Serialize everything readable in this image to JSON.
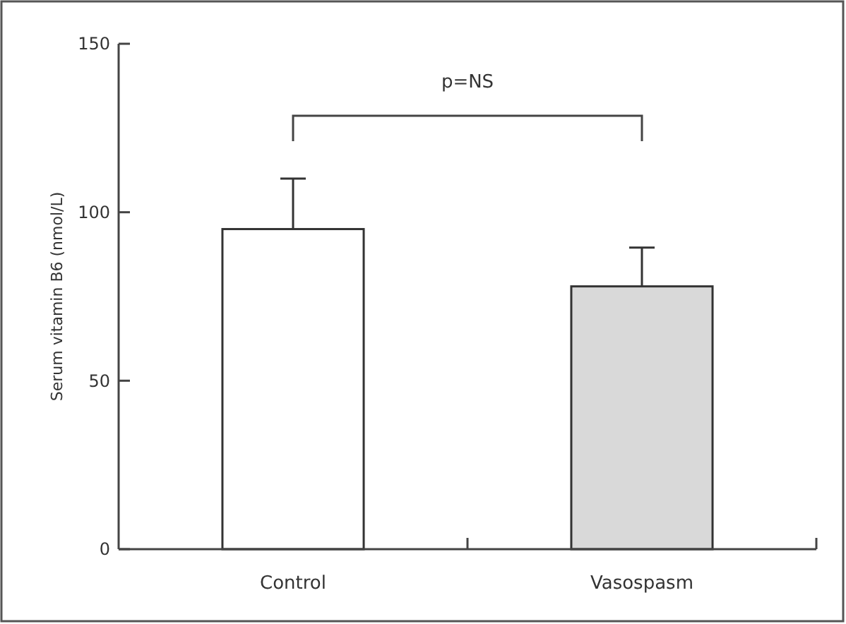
{
  "chart_data": {
    "type": "bar",
    "ylabel": "Serum vitamin B6 (nmol/L)",
    "categories": [
      "Control",
      "Vasospasm"
    ],
    "values": [
      95,
      78
    ],
    "colors": [
      "#ffffff",
      "#d9d9d9"
    ],
    "errors": [
      [
        95,
        110
      ],
      [
        78,
        89.5
      ]
    ],
    "ylim": [
      0,
      150
    ],
    "yticks": [
      0,
      50,
      100,
      150
    ],
    "annotations": [
      "p=NS"
    ]
  }
}
